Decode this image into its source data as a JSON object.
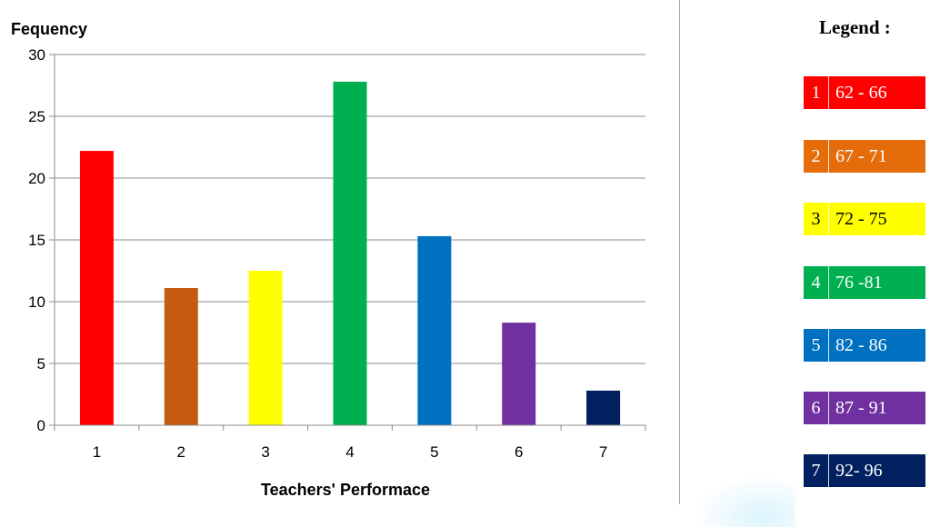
{
  "chart_data": {
    "type": "bar",
    "title": "",
    "ylabel": "Fequency",
    "xlabel": "Teachers' Performace",
    "categories": [
      "1",
      "2",
      "3",
      "4",
      "5",
      "6",
      "7"
    ],
    "values": [
      22.2,
      11.1,
      12.5,
      27.8,
      15.3,
      8.3,
      2.8
    ],
    "ylim": [
      0,
      30
    ],
    "yticks": [
      "0",
      "5",
      "10",
      "15",
      "20",
      "25",
      "30"
    ],
    "grid": true,
    "colors": [
      "#ff0000",
      "#c55a11",
      "#ffff00",
      "#00b050",
      "#0070c0",
      "#7030a0",
      "#002060"
    ],
    "legend_placement": "right"
  },
  "legend": {
    "title": "Legend :",
    "items": [
      {
        "num": "1",
        "range": "62 - 66",
        "bg": "#ff0000",
        "fg": "#ffffff"
      },
      {
        "num": "2",
        "range": "67 - 71",
        "bg": "#e46c0a",
        "fg": "#ffffff"
      },
      {
        "num": "3",
        "range": "72 - 75",
        "bg": "#ffff00",
        "fg": "#000000"
      },
      {
        "num": "4",
        "range": "76 -81",
        "bg": "#00b050",
        "fg": "#ffffff"
      },
      {
        "num": "5",
        "range": "82 - 86",
        "bg": "#0070c0",
        "fg": "#ffffff"
      },
      {
        "num": "6",
        "range": "87 - 91",
        "bg": "#7030a0",
        "fg": "#ffffff"
      },
      {
        "num": "7",
        "range": "92- 96",
        "bg": "#002060",
        "fg": "#ffffff"
      }
    ]
  }
}
